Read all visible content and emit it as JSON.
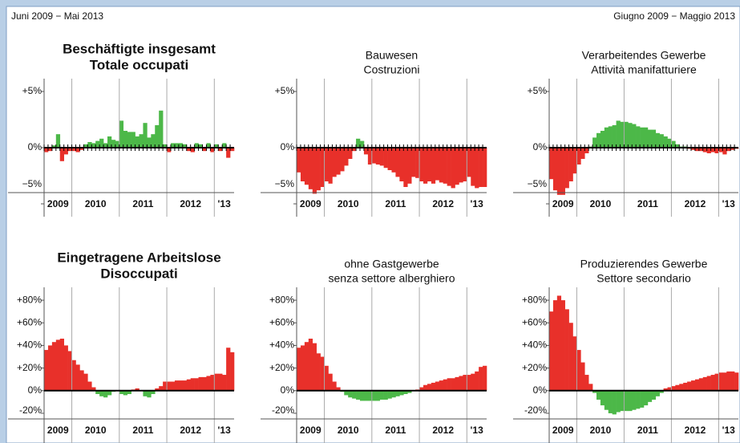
{
  "header": {
    "left": "Juni 2009 − Mai 2013",
    "right": "Giugno 2009 − Maggio 2013"
  },
  "chart_data": [
    {
      "type": "bar",
      "title": [
        "Beschäftigte insgesamt",
        "Totale occupati"
      ],
      "bold": true,
      "month_ticks": true,
      "pos_color": "#4cb848",
      "neg_color": "#e8302a",
      "ylim": [
        -5,
        6
      ],
      "yticks": [
        {
          "value": 5,
          "label": "+5%"
        },
        {
          "value": 0,
          "label": "0%"
        },
        {
          "value": -5,
          "label": "−5%"
        }
      ],
      "year_groups": [
        {
          "label": "2009",
          "months": 7
        },
        {
          "label": "2010",
          "months": 12
        },
        {
          "label": "2011",
          "months": 12
        },
        {
          "label": "2012",
          "months": 12
        },
        {
          "label": "'13",
          "months": 5
        }
      ],
      "values": [
        -0.4,
        -0.3,
        0.2,
        1.2,
        -1.2,
        -0.6,
        -0.3,
        -0.3,
        -0.4,
        -0.2,
        0.3,
        0.5,
        0.4,
        0.6,
        0.8,
        0.4,
        1.0,
        0.7,
        0.6,
        2.4,
        1.5,
        1.4,
        1.4,
        1.0,
        1.2,
        2.2,
        0.9,
        1.2,
        2.0,
        3.3,
        0.3,
        -0.4,
        0.4,
        0.4,
        0.4,
        0.3,
        -0.3,
        -0.4,
        0.4,
        0.3,
        -0.3,
        0.4,
        -0.4,
        0.3,
        -0.3,
        0.4,
        -0.9,
        -0.3
      ]
    },
    {
      "type": "bar",
      "title": [
        "Bauwesen",
        "Costruzioni"
      ],
      "bold": false,
      "month_ticks": true,
      "pos_color": "#4cb848",
      "neg_color": "#e8302a",
      "ylim": [
        -5,
        6
      ],
      "yticks": [
        {
          "value": 5,
          "label": "+5%"
        },
        {
          "value": 0,
          "label": "0%"
        },
        {
          "value": -5,
          "label": "−5%"
        }
      ],
      "year_groups": [
        {
          "label": "2009",
          "months": 7
        },
        {
          "label": "2010",
          "months": 12
        },
        {
          "label": "2011",
          "months": 12
        },
        {
          "label": "2012",
          "months": 12
        },
        {
          "label": "'13",
          "months": 5
        }
      ],
      "values": [
        -2.2,
        -3.0,
        -3.3,
        -3.7,
        -4.1,
        -3.8,
        -3.5,
        -3.0,
        -3.2,
        -2.6,
        -2.4,
        -2.1,
        -1.6,
        -1.0,
        -0.3,
        0.8,
        0.6,
        -0.6,
        -1.5,
        -1.4,
        -1.5,
        -1.6,
        -1.8,
        -2.0,
        -2.2,
        -2.6,
        -3.0,
        -3.5,
        -3.2,
        -2.6,
        -2.7,
        -3.0,
        -3.2,
        -3.0,
        -3.2,
        -2.9,
        -3.1,
        -3.2,
        -3.4,
        -3.6,
        -3.3,
        -3.1,
        -3.0,
        -2.6,
        -3.4,
        -3.6,
        -3.5,
        -3.5
      ]
    },
    {
      "type": "bar",
      "title": [
        "Verarbeitendes Gewerbe",
        "Attività manifatturiere"
      ],
      "bold": false,
      "month_ticks": true,
      "pos_color": "#4cb848",
      "neg_color": "#e8302a",
      "ylim": [
        -5,
        6
      ],
      "yticks": [
        {
          "value": 5,
          "label": "+5%"
        },
        {
          "value": 0,
          "label": "0%"
        },
        {
          "value": -5,
          "label": "−5%"
        }
      ],
      "year_groups": [
        {
          "label": "2009",
          "months": 7
        },
        {
          "label": "2010",
          "months": 12
        },
        {
          "label": "2011",
          "months": 12
        },
        {
          "label": "2012",
          "months": 12
        },
        {
          "label": "'13",
          "months": 5
        }
      ],
      "values": [
        -2.8,
        -3.8,
        -4.2,
        -4.2,
        -3.6,
        -3.0,
        -2.3,
        -1.5,
        -1.0,
        -0.5,
        0.1,
        0.9,
        1.3,
        1.5,
        1.8,
        1.9,
        2.0,
        2.4,
        2.3,
        2.3,
        2.2,
        2.1,
        1.9,
        1.8,
        1.8,
        1.6,
        1.6,
        1.3,
        1.2,
        1.0,
        0.8,
        0.6,
        0.3,
        0.1,
        0.1,
        -0.1,
        -0.2,
        -0.3,
        -0.3,
        -0.4,
        -0.5,
        -0.4,
        -0.5,
        -0.4,
        -0.6,
        -0.3,
        -0.2,
        -0.1
      ]
    },
    {
      "type": "bar",
      "title": [
        "Eingetragene Arbeitslose",
        "Disoccupati"
      ],
      "bold": true,
      "month_ticks": false,
      "pos_color": "#e8302a",
      "neg_color": "#4cb848",
      "ylim": [
        -25,
        90
      ],
      "yticks": [
        {
          "value": 80,
          "label": "+80%"
        },
        {
          "value": 60,
          "label": "+60%"
        },
        {
          "value": 40,
          "label": "+40%"
        },
        {
          "value": 20,
          "label": "+20%"
        },
        {
          "value": 0,
          "label": "0%"
        },
        {
          "value": -20,
          "label": "-20%"
        }
      ],
      "year_groups": [
        {
          "label": "2009",
          "months": 7
        },
        {
          "label": "2010",
          "months": 12
        },
        {
          "label": "2011",
          "months": 12
        },
        {
          "label": "2012",
          "months": 12
        },
        {
          "label": "'13",
          "months": 5
        }
      ],
      "values": [
        36,
        40,
        43,
        45,
        46,
        40,
        35,
        27,
        23,
        18,
        15,
        8,
        3,
        -3,
        -5,
        -6,
        -4,
        -1,
        0,
        -3,
        -4,
        -3,
        1,
        2,
        0,
        -5,
        -6,
        -3,
        2,
        4,
        8,
        8,
        8,
        9,
        9,
        9,
        10,
        11,
        11,
        12,
        12,
        13,
        14,
        15,
        15,
        14,
        38,
        34
      ]
    },
    {
      "type": "bar",
      "title": [
        "ohne Gastgewerbe",
        "senza settore alberghiero"
      ],
      "bold": false,
      "month_ticks": false,
      "pos_color": "#e8302a",
      "neg_color": "#4cb848",
      "ylim": [
        -25,
        90
      ],
      "yticks": [
        {
          "value": 80,
          "label": "+80%"
        },
        {
          "value": 60,
          "label": "+60%"
        },
        {
          "value": 40,
          "label": "+40%"
        },
        {
          "value": 20,
          "label": "+20%"
        },
        {
          "value": 0,
          "label": "0%"
        },
        {
          "value": -20,
          "label": "-20%"
        }
      ],
      "year_groups": [
        {
          "label": "2009",
          "months": 7
        },
        {
          "label": "2010",
          "months": 12
        },
        {
          "label": "2011",
          "months": 12
        },
        {
          "label": "2012",
          "months": 12
        },
        {
          "label": "'13",
          "months": 5
        }
      ],
      "values": [
        38,
        40,
        43,
        46,
        42,
        33,
        30,
        22,
        15,
        8,
        3,
        -1,
        -4,
        -6,
        -7,
        -8,
        -9,
        -9,
        -9,
        -9,
        -9,
        -8,
        -8,
        -7,
        -6,
        -5,
        -4,
        -3,
        -2,
        0,
        1,
        3,
        5,
        6,
        7,
        8,
        9,
        10,
        11,
        11,
        12,
        13,
        14,
        14,
        15,
        17,
        21,
        22
      ]
    },
    {
      "type": "bar",
      "title": [
        "Produzierendes Gewerbe",
        "Settore secondario"
      ],
      "bold": false,
      "month_ticks": false,
      "pos_color": "#e8302a",
      "neg_color": "#4cb848",
      "ylim": [
        -25,
        90
      ],
      "yticks": [
        {
          "value": 80,
          "label": "+80%"
        },
        {
          "value": 60,
          "label": "+60%"
        },
        {
          "value": 40,
          "label": "+40%"
        },
        {
          "value": 20,
          "label": "+20%"
        },
        {
          "value": 0,
          "label": "0%"
        },
        {
          "value": -20,
          "label": "-20%"
        }
      ],
      "year_groups": [
        {
          "label": "2009",
          "months": 7
        },
        {
          "label": "2010",
          "months": 12
        },
        {
          "label": "2011",
          "months": 12
        },
        {
          "label": "2012",
          "months": 12
        },
        {
          "label": "'13",
          "months": 5
        }
      ],
      "values": [
        70,
        80,
        84,
        80,
        72,
        60,
        48,
        36,
        25,
        14,
        6,
        -2,
        -8,
        -13,
        -17,
        -20,
        -21,
        -19,
        -18,
        -18,
        -18,
        -17,
        -16,
        -15,
        -13,
        -10,
        -8,
        -5,
        -2,
        2,
        3,
        4,
        5,
        6,
        7,
        8,
        9,
        10,
        11,
        12,
        13,
        14,
        15,
        16,
        16,
        17,
        17,
        16
      ]
    }
  ]
}
